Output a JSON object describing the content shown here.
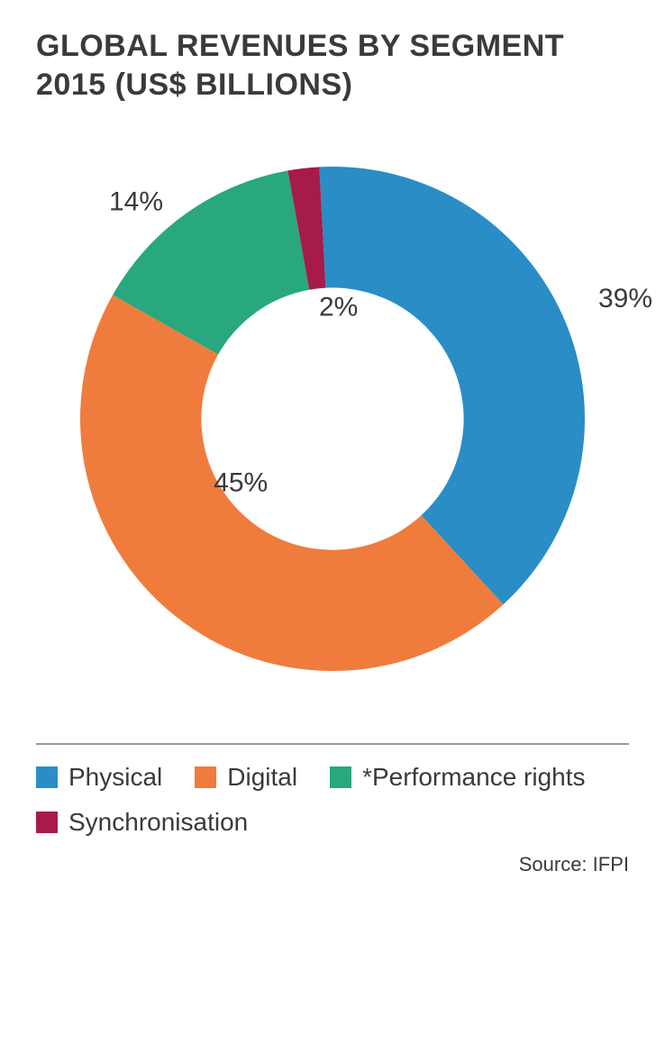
{
  "chart": {
    "type": "donut",
    "title": "GLOBAL REVENUES BY SEGMENT 2015 (US$ BILLIONS)",
    "title_fontsize": 34,
    "title_color": "#3a3a3a",
    "background_color": "#ffffff",
    "start_angle_deg": -3,
    "outer_radius": 280,
    "inner_radius_ratio": 0.52,
    "label_fontsize": 30,
    "label_color": "#3a3a3a",
    "segments": [
      {
        "name": "Physical",
        "value": 39,
        "label": "39%",
        "color": "#2a8dc5"
      },
      {
        "name": "Digital",
        "value": 45,
        "label": "45%",
        "color": "#ef7c3c"
      },
      {
        "name": "*Performance rights",
        "value": 14,
        "label": "14%",
        "color": "#29a77e"
      },
      {
        "name": "Synchronisation",
        "value": 2,
        "label": "2%",
        "color": "#a61b4b"
      }
    ],
    "divider_color": "#9a9a9a",
    "legend_fontsize": 28,
    "legend_swatch_size": 24,
    "source": "Source: IFPI",
    "source_fontsize": 22
  }
}
